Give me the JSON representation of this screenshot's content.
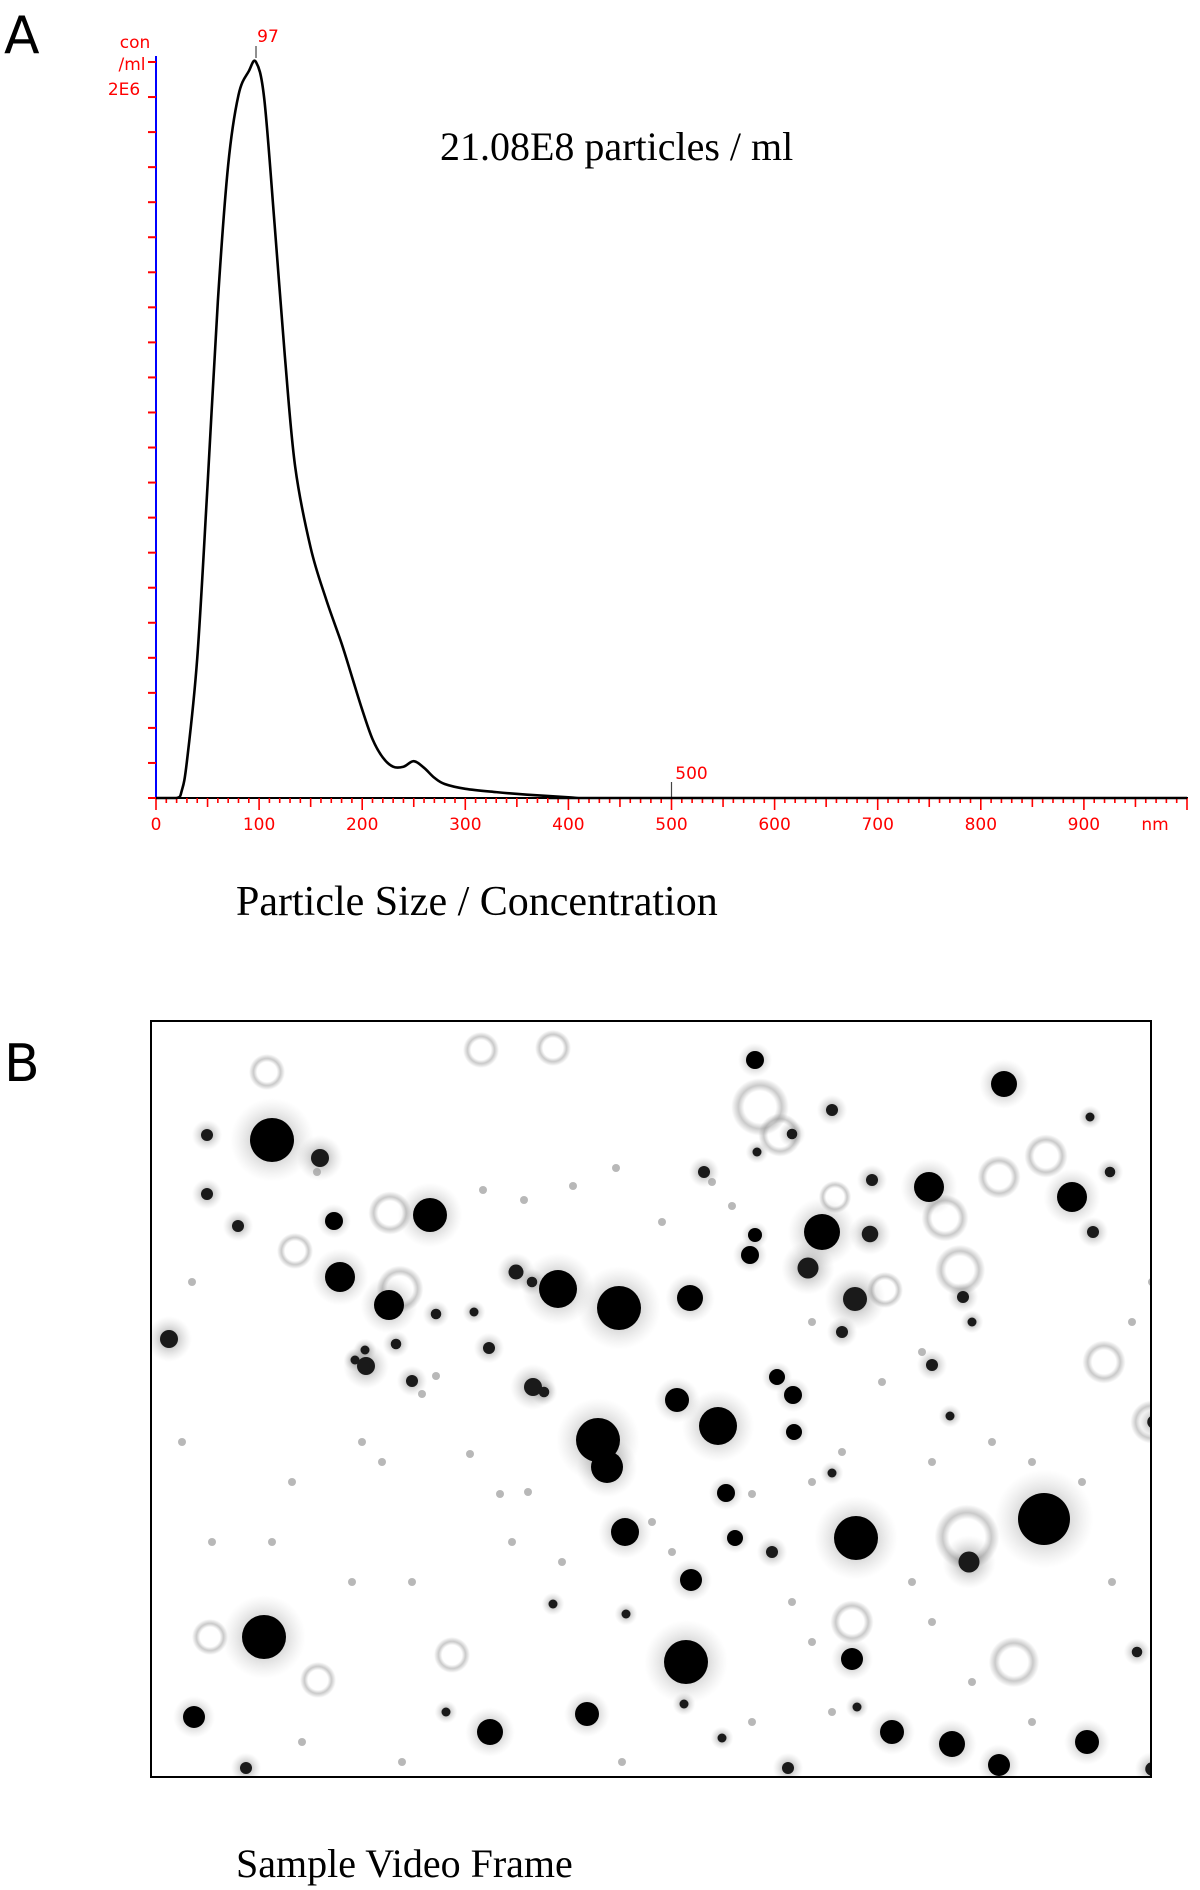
{
  "panel_a": {
    "letter": "A",
    "caption": "Particle Size / Concentration",
    "concentration_text": "21.08E8 particles / ml"
  },
  "panel_b": {
    "letter": "B",
    "caption": "Sample Video Frame"
  },
  "chart_data": {
    "type": "line",
    "ylabel_lines": [
      "con",
      "/ml"
    ],
    "ymax_label": "2E6",
    "xunit": "nm",
    "xlim": [
      0,
      1000
    ],
    "ylim": [
      0,
      2000000
    ],
    "xticks": [
      0,
      100,
      200,
      300,
      400,
      500,
      600,
      700,
      800,
      900
    ],
    "xtick_labels": [
      "0",
      "100",
      "200",
      "300",
      "400",
      "500",
      "600",
      "700",
      "800",
      "900"
    ],
    "peak_label": "97",
    "peak_x": 97,
    "marker_label": "500",
    "marker_x": 500,
    "series_color": "#000000",
    "axis_color": "#ff0000",
    "yaxis_color": "#0000ff",
    "x": [
      0,
      20,
      25,
      30,
      40,
      50,
      60,
      70,
      80,
      90,
      97,
      105,
      115,
      125,
      135,
      150,
      165,
      180,
      190,
      200,
      210,
      220,
      230,
      240,
      250,
      260,
      270,
      280,
      300,
      330,
      360,
      400,
      410,
      430,
      1000
    ],
    "y": [
      0,
      0,
      20000,
      100000,
      380000,
      850000,
      1350000,
      1720000,
      1910000,
      1975000,
      2000000,
      1900000,
      1560000,
      1200000,
      900000,
      680000,
      540000,
      420000,
      330000,
      240000,
      160000,
      110000,
      85000,
      85000,
      100000,
      82000,
      55000,
      38000,
      25000,
      16000,
      9000,
      2000,
      0,
      0,
      0
    ]
  }
}
